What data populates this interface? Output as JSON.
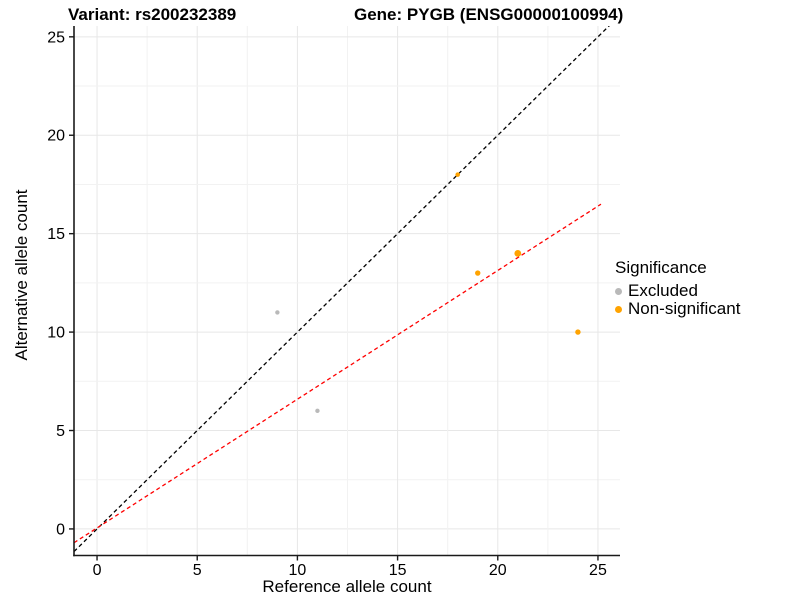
{
  "titles": {
    "variant": "Variant: rs200232389",
    "gene": "Gene: PYGB (ENSG00000100994)"
  },
  "axes": {
    "x": {
      "label": "Reference allele count",
      "ticks": [
        "0",
        "5",
        "10",
        "15",
        "20",
        "25"
      ],
      "tick_values": [
        0,
        5,
        10,
        15,
        20,
        25
      ]
    },
    "y": {
      "label": "Alternative allele count",
      "ticks": [
        "0",
        "5",
        "10",
        "15",
        "20",
        "25"
      ],
      "tick_values": [
        0,
        5,
        10,
        15,
        20,
        25
      ]
    }
  },
  "legend": {
    "title": "Significance",
    "items": [
      {
        "label": "Excluded",
        "color": "#B9B9B9"
      },
      {
        "label": "Non-significant",
        "color": "#FFA300"
      }
    ]
  },
  "colors": {
    "excluded_point": "#B9B9B9",
    "non_significant_point": "#FFA300",
    "identity_line": "#000000",
    "fit_line": "#FF0000",
    "grid_major": "#E7E7E7",
    "grid_minor": "#F2F2F2",
    "axis": "#1a1a1a"
  },
  "chart_data": {
    "type": "scatter",
    "title_left": "Variant: rs200232389",
    "title_right": "Gene: PYGB (ENSG00000100994)",
    "xlabel": "Reference allele count",
    "ylabel": "Alternative allele count",
    "xlim": [
      -1.15,
      26.1
    ],
    "ylim": [
      -1.35,
      25.55
    ],
    "grid": {
      "on": true,
      "min": 0,
      "max": 25,
      "major_step": 5,
      "minor_step": 2.5
    },
    "legend_position": "right",
    "series": [
      {
        "name": "Excluded",
        "color": "#B9B9B9",
        "points": [
          {
            "x": 9,
            "y": 11,
            "r": 2.2
          },
          {
            "x": 11,
            "y": 6,
            "r": 2.2
          }
        ]
      },
      {
        "name": "Non-significant",
        "color": "#FFA300",
        "points": [
          {
            "x": 18,
            "y": 18,
            "r": 2.3
          },
          {
            "x": 19,
            "y": 13,
            "r": 2.7
          },
          {
            "x": 21,
            "y": 14,
            "r": 3.4
          },
          {
            "x": 24,
            "y": 10,
            "r": 2.7
          }
        ]
      }
    ],
    "lines": [
      {
        "name": "identity-line",
        "slope": 1,
        "intercept": 0,
        "color": "#000000",
        "dash": "4 3",
        "x_start": -1.15,
        "x_end": 25.6
      },
      {
        "name": "fit-line",
        "slope": 0.654,
        "intercept": 0.05,
        "color": "#FF0000",
        "dash": "4 3",
        "x_start": -1.15,
        "x_end": 25.15
      }
    ]
  }
}
